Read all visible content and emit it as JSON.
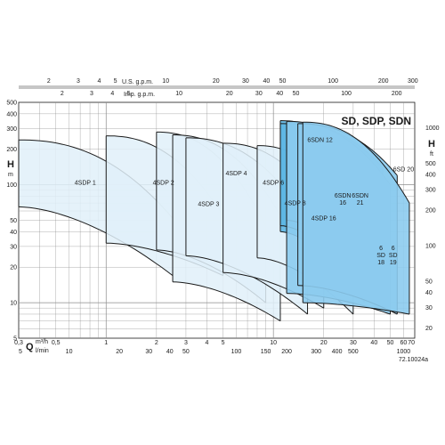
{
  "chart_data": {
    "type": "area",
    "title": "SD, SDP, SDN",
    "scale": "log-log",
    "grid": true,
    "x_primary": {
      "quantity": "Q",
      "unit_top": "m³/h",
      "unit_bottom": "l/min",
      "range_m3h": [
        0.3,
        70
      ],
      "ticks_m3h": [
        "0,3",
        "0,5",
        "1",
        "2",
        "3",
        "4",
        "5",
        "10",
        "20",
        "30",
        "40",
        "50",
        "60",
        "70"
      ],
      "ticks_lmin": [
        "5",
        "10",
        "20",
        "30",
        "40",
        "50",
        "100",
        "150",
        "200",
        "300",
        "400",
        "500",
        "1000"
      ]
    },
    "x_secondary": {
      "usgpm_label": "U.S. g.p.m.",
      "usgpm_ticks": [
        "2",
        "3",
        "4",
        "5",
        "10",
        "20",
        "30",
        "40",
        "50",
        "100",
        "200",
        "300"
      ],
      "impgpm_label": "Imp. g.p.m.",
      "impgpm_ticks": [
        "2",
        "3",
        "4",
        "5",
        "10",
        "20",
        "30",
        "40",
        "50",
        "100",
        "200"
      ]
    },
    "y_primary": {
      "quantity": "H",
      "unit": "m",
      "range": [
        5,
        500
      ],
      "ticks": [
        "500",
        "400",
        "300",
        "200",
        "100",
        "50",
        "40",
        "30",
        "20",
        "10",
        "5"
      ]
    },
    "y_secondary": {
      "quantity": "H",
      "unit": "ft",
      "ticks": [
        "1000",
        "500",
        "400",
        "300",
        "200",
        "100",
        "50",
        "40",
        "30",
        "20"
      ]
    },
    "series": [
      {
        "name": "4SDP 1",
        "family": "4SDP",
        "q": [
          0.3,
          2.5
        ],
        "h_top": [
          240,
          52
        ],
        "h_bottom": [
          65,
          17
        ],
        "label_q": 0.75,
        "label_h": 100
      },
      {
        "name": "4SDP 2",
        "family": "4SDP",
        "q": [
          1,
          5
        ],
        "h_top": [
          260,
          55
        ],
        "h_bottom": [
          32,
          17
        ],
        "label_q": 2.2,
        "label_h": 100
      },
      {
        "name": "4SDP 3",
        "family": "4SDP",
        "q": [
          2,
          9
        ],
        "h_top": [
          280,
          45
        ],
        "h_bottom": [
          28,
          10
        ],
        "label_q": 4.1,
        "label_h": 66
      },
      {
        "name": "4SDP 4",
        "family": "4SDP",
        "q": [
          2.5,
          11
        ],
        "h_top": [
          265,
          55
        ],
        "h_bottom": [
          15,
          7
        ],
        "label_q": 6,
        "label_h": 120
      },
      {
        "name": "4SDP 6",
        "family": "4SDP",
        "q": [
          3,
          16
        ],
        "h_top": [
          250,
          50
        ],
        "h_bottom": [
          25,
          8
        ],
        "label_q": 10,
        "label_h": 100
      },
      {
        "name": "4SDP 8",
        "family": "4SDP",
        "q": [
          5,
          20
        ],
        "h_top": [
          225,
          60
        ],
        "h_bottom": [
          18,
          9
        ],
        "label_q": 13.5,
        "label_h": 67
      },
      {
        "name": "4SDP 16",
        "family": "4SDP",
        "q": [
          8,
          30
        ],
        "h_top": [
          215,
          45
        ],
        "h_bottom": [
          24,
          8
        ],
        "label_q": 20,
        "label_h": 50
      },
      {
        "name": "6SDN 12",
        "family": "6SDN",
        "q": [
          11,
          35
        ],
        "h_top": [
          350,
          100
        ],
        "h_bottom": [
          40,
          10
        ],
        "label_q": 19,
        "label_h": 230
      },
      {
        "name": "6SDN 16",
        "family": "6SDN",
        "q": [
          11,
          38
        ],
        "h_top": [
          330,
          120
        ],
        "h_bottom": [
          45,
          11
        ],
        "label_q": 26,
        "label_h": 78
      },
      {
        "name": "6SDN 21",
        "family": "6SDN",
        "q": [
          12,
          45
        ],
        "h_top": [
          340,
          140
        ],
        "h_bottom": [
          50,
          12
        ],
        "label_q": 33,
        "label_h": 78
      },
      {
        "name": "6SD 18",
        "family": "6SD",
        "q": [
          12,
          50
        ],
        "h_top": [
          345,
          100
        ],
        "h_bottom": [
          12,
          8
        ],
        "label_q": 44,
        "label_h": 28
      },
      {
        "name": "6SD 19",
        "family": "6SD",
        "q": [
          14,
          55
        ],
        "h_top": [
          330,
          120
        ],
        "h_bottom": [
          14,
          8
        ],
        "label_q": 52,
        "label_h": 28
      },
      {
        "name": "6SD 20",
        "family": "6SD",
        "q": [
          15,
          65
        ],
        "h_top": [
          340,
          70
        ],
        "h_bottom": [
          10,
          8
        ],
        "label_q": 60,
        "label_h": 130
      }
    ],
    "colors": {
      "4SDP": "#e1f0f9",
      "6SDN": "#5db6e3",
      "6SD": "#8ccbee",
      "grid": "#8d8d8d",
      "curve": "#1a1a1a"
    },
    "footnote": "72.10024a"
  }
}
